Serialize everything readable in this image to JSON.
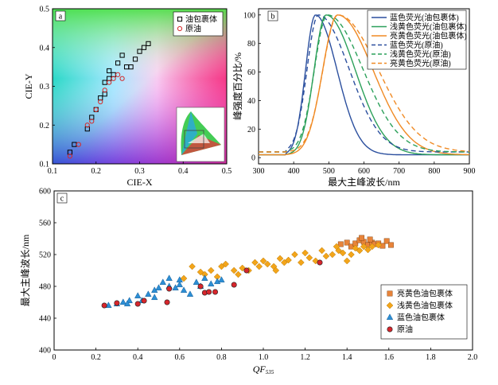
{
  "colors": {
    "blue": "#2b4f9e",
    "green": "#2ca05a",
    "orange": "#f08a24",
    "red": "#d62a2a",
    "sq_orange": "#e8843a",
    "dia_orange": "#f3a51a",
    "tri_blue": "#2d8fd5",
    "circ_red": "#d7262c"
  },
  "chart_data": [
    {
      "panel": "a",
      "type": "scatter",
      "xlabel": "CIE-X",
      "ylabel": "CIE-Y",
      "xlim": [
        0.1,
        0.5
      ],
      "ylim": [
        0.1,
        0.5
      ],
      "xticks": [
        "0.1",
        "0.2",
        "0.3",
        "0.4",
        "0.5"
      ],
      "yticks": [
        "0.1",
        "0.2",
        "0.3",
        "0.4",
        "0.5"
      ],
      "legend_position": "top-right",
      "series": [
        {
          "name": "油包裹体",
          "marker": "square",
          "color": "#000000",
          "points": [
            [
              0.14,
              0.13
            ],
            [
              0.15,
              0.15
            ],
            [
              0.18,
              0.19
            ],
            [
              0.19,
              0.22
            ],
            [
              0.2,
              0.24
            ],
            [
              0.21,
              0.27
            ],
            [
              0.22,
              0.28
            ],
            [
              0.22,
              0.31
            ],
            [
              0.23,
              0.32
            ],
            [
              0.23,
              0.34
            ],
            [
              0.24,
              0.33
            ],
            [
              0.25,
              0.36
            ],
            [
              0.26,
              0.38
            ],
            [
              0.27,
              0.35
            ],
            [
              0.28,
              0.35
            ],
            [
              0.29,
              0.37
            ],
            [
              0.3,
              0.39
            ],
            [
              0.31,
              0.4
            ],
            [
              0.32,
              0.41
            ]
          ]
        },
        {
          "name": "原油",
          "marker": "circle",
          "color": "#d62a2a",
          "points": [
            [
              0.14,
              0.12
            ],
            [
              0.16,
              0.15
            ],
            [
              0.18,
              0.2
            ],
            [
              0.19,
              0.21
            ],
            [
              0.2,
              0.24
            ],
            [
              0.21,
              0.26
            ],
            [
              0.22,
              0.29
            ],
            [
              0.23,
              0.31
            ],
            [
              0.24,
              0.32
            ],
            [
              0.25,
              0.33
            ],
            [
              0.26,
              0.32
            ]
          ]
        }
      ],
      "inset": "CIE chromaticity diagram"
    },
    {
      "panel": "b",
      "type": "line",
      "xlabel": "最大主峰波长/nm",
      "ylabel": "峰强度百分比/%",
      "xlim": [
        300,
        900
      ],
      "ylim": [
        0,
        100
      ],
      "xticks": [
        "300",
        "400",
        "500",
        "600",
        "700",
        "800",
        "900"
      ],
      "yticks": [
        "0",
        "20",
        "40",
        "60",
        "80",
        "100"
      ],
      "legend_position": "top-right",
      "series": [
        {
          "name": "蓝色荧光(油包裹体)",
          "color": "#2b4f9e",
          "dash": false,
          "peak": 462,
          "width_left": 40,
          "width_right": 70
        },
        {
          "name": "浅黄色荧光(油包裹体)",
          "color": "#2ca05a",
          "dash": false,
          "peak": 492,
          "width_left": 48,
          "width_right": 95
        },
        {
          "name": "亮黄色荧光(油包裹体)",
          "color": "#f08a24",
          "dash": false,
          "peak": 525,
          "width_left": 60,
          "width_right": 115
        },
        {
          "name": "蓝色荧光(原油)",
          "color": "#2b4f9e",
          "dash": true,
          "peak": 470,
          "width_left": 45,
          "width_right": 100
        },
        {
          "name": "浅黄色荧光(原油)",
          "color": "#2ca05a",
          "dash": true,
          "peak": 496,
          "width_left": 52,
          "width_right": 115
        },
        {
          "name": "亮黄色荧光(原油)",
          "color": "#f08a24",
          "dash": true,
          "peak": 526,
          "width_left": 60,
          "width_right": 130
        }
      ]
    },
    {
      "panel": "c",
      "type": "scatter",
      "xlabel": "QF535",
      "xlabel_main": "QF",
      "xlabel_sub": "535",
      "ylabel": "最大主峰波长/nm",
      "xlim": [
        0,
        2.0
      ],
      "ylim": [
        400,
        600
      ],
      "xticks": [
        "0",
        "0.2",
        "0.4",
        "0.6",
        "0.8",
        "1.0",
        "1.2",
        "1.4",
        "1.6",
        "1.8",
        "2.0"
      ],
      "yticks": [
        "400",
        "440",
        "480",
        "520",
        "560",
        "600"
      ],
      "legend_position": "bottom-right",
      "series": [
        {
          "name": "亮黄色油包裹体",
          "marker": "square",
          "color": "#e8843a",
          "points": [
            [
              1.37,
              533
            ],
            [
              1.4,
              535
            ],
            [
              1.42,
              530
            ],
            [
              1.44,
              534
            ],
            [
              1.46,
              538
            ],
            [
              1.48,
              536
            ],
            [
              1.5,
              532
            ],
            [
              1.52,
              535
            ],
            [
              1.53,
              533
            ],
            [
              1.55,
              534
            ],
            [
              1.57,
              531
            ],
            [
              1.59,
              537
            ],
            [
              1.61,
              532
            ],
            [
              1.47,
              541
            ],
            [
              1.51,
              539
            ]
          ]
        },
        {
          "name": "浅黄色油包裹体",
          "marker": "diamond",
          "color": "#f3a51a",
          "points": [
            [
              0.62,
              490
            ],
            [
              0.66,
              505
            ],
            [
              0.7,
              498
            ],
            [
              0.72,
              495
            ],
            [
              0.75,
              500
            ],
            [
              0.78,
              492
            ],
            [
              0.8,
              505
            ],
            [
              0.82,
              508
            ],
            [
              0.86,
              500
            ],
            [
              0.9,
              503
            ],
            [
              0.93,
              500
            ],
            [
              0.96,
              510
            ],
            [
              0.98,
              505
            ],
            [
              1.0,
              512
            ],
            [
              1.02,
              508
            ],
            [
              1.05,
              505
            ],
            [
              1.08,
              515
            ],
            [
              1.1,
              510
            ],
            [
              1.12,
              513
            ],
            [
              1.15,
              520
            ],
            [
              1.18,
              510
            ],
            [
              1.2,
              522
            ],
            [
              1.25,
              512
            ],
            [
              1.28,
              525
            ],
            [
              1.3,
              518
            ],
            [
              1.33,
              520
            ],
            [
              1.36,
              525
            ],
            [
              1.38,
              522
            ],
            [
              1.4,
              512
            ],
            [
              1.42,
              520
            ],
            [
              1.44,
              528
            ],
            [
              1.46,
              525
            ],
            [
              1.48,
              530
            ],
            [
              1.5,
              526
            ],
            [
              1.52,
              530
            ],
            [
              1.55,
              532
            ],
            [
              0.88,
              495
            ],
            [
              1.06,
              500
            ],
            [
              1.22,
              516
            ],
            [
              1.35,
              530
            ]
          ]
        },
        {
          "name": "蓝色油包裹体",
          "marker": "triangle",
          "color": "#2d8fd5",
          "points": [
            [
              0.26,
              456
            ],
            [
              0.3,
              458
            ],
            [
              0.33,
              460
            ],
            [
              0.36,
              462
            ],
            [
              0.4,
              468
            ],
            [
              0.42,
              462
            ],
            [
              0.45,
              470
            ],
            [
              0.48,
              475
            ],
            [
              0.5,
              478
            ],
            [
              0.52,
              485
            ],
            [
              0.55,
              480
            ],
            [
              0.58,
              478
            ],
            [
              0.6,
              482
            ],
            [
              0.62,
              475
            ],
            [
              0.65,
              470
            ],
            [
              0.68,
              485
            ],
            [
              0.7,
              480
            ],
            [
              0.72,
              490
            ],
            [
              0.75,
              483
            ],
            [
              0.78,
              486
            ],
            [
              0.8,
              488
            ],
            [
              0.55,
              490
            ],
            [
              0.6,
              488
            ],
            [
              0.35,
              458
            ],
            [
              0.48,
              466
            ]
          ]
        },
        {
          "name": "原油",
          "marker": "circle",
          "color": "#d7262c",
          "points": [
            [
              0.24,
              456
            ],
            [
              0.3,
              459
            ],
            [
              0.4,
              458
            ],
            [
              0.43,
              462
            ],
            [
              0.54,
              460
            ],
            [
              0.55,
              477
            ],
            [
              0.7,
              480
            ],
            [
              0.72,
              472
            ],
            [
              0.74,
              473
            ],
            [
              0.77,
              473
            ],
            [
              0.86,
              482
            ],
            [
              0.92,
              500
            ],
            [
              1.27,
              510
            ]
          ]
        }
      ]
    }
  ]
}
